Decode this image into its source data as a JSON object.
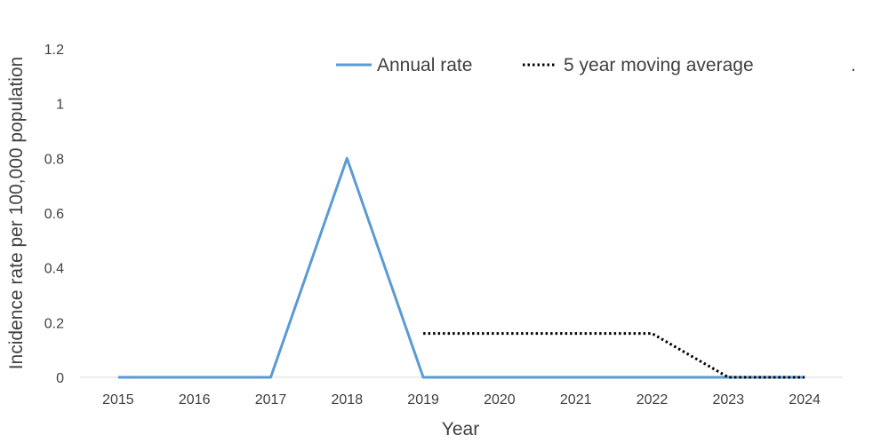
{
  "chart_data": {
    "type": "line",
    "title": "",
    "xlabel": "Year",
    "ylabel": "Incidence rate per 100,000 population",
    "x": [
      2015,
      2016,
      2017,
      2018,
      2019,
      2020,
      2021,
      2022,
      2023,
      2024
    ],
    "ylim": [
      0,
      1.2
    ],
    "yticks": [
      "0",
      "0.2",
      "0.4",
      "0.6",
      "0.8",
      "1",
      "1.2"
    ],
    "grid": false,
    "legend": "top-right",
    "series": [
      {
        "name": "Annual rate",
        "style": "solid",
        "color": "#5B9BD5",
        "values": [
          0,
          0,
          0,
          0.8,
          0,
          0,
          0,
          0,
          0,
          0
        ]
      },
      {
        "name": "5 year moving average",
        "style": "dotted",
        "color": "#000000",
        "values": [
          null,
          null,
          null,
          null,
          0.16,
          0.16,
          0.16,
          0.16,
          0,
          0
        ]
      }
    ],
    "annotation": "."
  }
}
